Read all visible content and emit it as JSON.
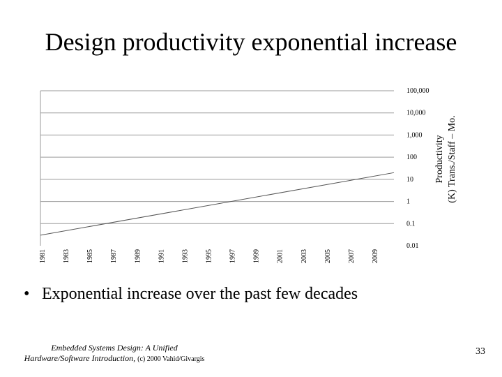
{
  "slide": {
    "title": "Design productivity exponential increase",
    "bullet": "Exponential increase over the past few decades",
    "footer_line1": "Embedded Systems Design: A Unified",
    "footer_line2": "Hardware/Software Introduction,",
    "footer_copyright": "(c) 2000 Vahid/Givargis",
    "page_number": "33"
  },
  "chart_data": {
    "type": "line",
    "title": "",
    "ylabel_line1": "Productivity",
    "ylabel_line2": "(K) Trans./Staff – Mo.",
    "yscale": "log",
    "ylim": [
      0.01,
      100000
    ],
    "ytick_labels": [
      "100,000",
      "10,000",
      "1,000",
      "100",
      "10",
      "1",
      "0.1",
      "0.01"
    ],
    "ytick_values": [
      100000,
      10000,
      1000,
      100,
      10,
      1,
      0.1,
      0.01
    ],
    "xlim": [
      1981,
      2009
    ],
    "xtick_labels": [
      "1981",
      "1983",
      "1985",
      "1987",
      "1989",
      "1991",
      "1993",
      "1995",
      "1997",
      "1999",
      "2001",
      "2003",
      "2005",
      "2007",
      "2009"
    ],
    "grid": true,
    "series": [
      {
        "x": [
          1981,
          2009
        ],
        "y": [
          0.03,
          20
        ]
      }
    ]
  }
}
